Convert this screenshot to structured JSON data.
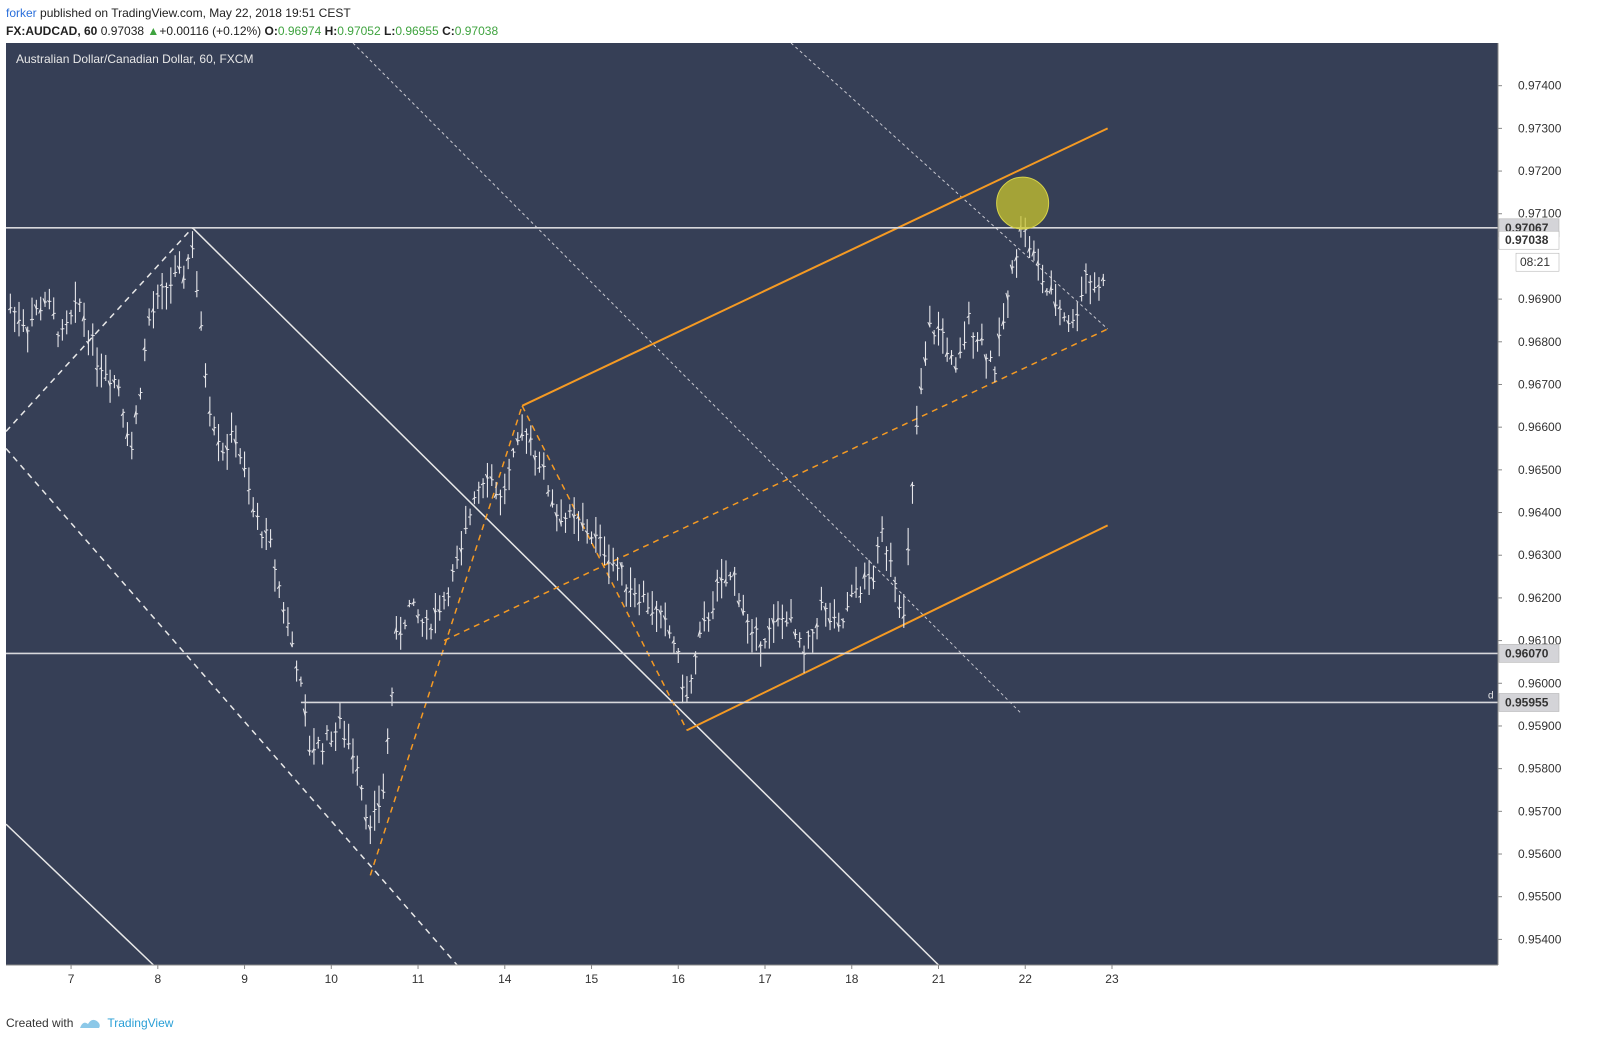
{
  "header": {
    "user": "forker",
    "published": " published on TradingView.com, May 22, 2018 19:51 CEST",
    "symbol": "FX:AUDCAD, 60",
    "last": "0.97038",
    "change": "+0.00116 (+0.12%)",
    "o_label": "O:",
    "o": "0.96974",
    "h_label": "H:",
    "h": "0.97052",
    "l_label": "L:",
    "l": "0.96955",
    "c_label": "C:",
    "c": "0.97038"
  },
  "footer": {
    "created_with": "Created with",
    "brand": "TradingView"
  },
  "colors": {
    "background": "#363f56",
    "orange": "#f59a23",
    "white": "#e8e8e8",
    "highlight": "#c9c52e"
  },
  "chart_data": {
    "type": "line",
    "title": "Australian Dollar/Canadian Dollar, 60, FXCM",
    "xlabel": "",
    "ylabel": "",
    "x_tick_labels": [
      "7",
      "8",
      "9",
      "10",
      "11",
      "14",
      "15",
      "16",
      "17",
      "18",
      "21",
      "22",
      "23"
    ],
    "y_tick_labels": [
      "0.97400",
      "0.97300",
      "0.97200",
      "0.97100",
      "0.96900",
      "0.96800",
      "0.96700",
      "0.96600",
      "0.96500",
      "0.96400",
      "0.96300",
      "0.96200",
      "0.96100",
      "0.96000",
      "0.95900",
      "0.95800",
      "0.95700",
      "0.95600",
      "0.95500",
      "0.95400"
    ],
    "ylim": [
      0.9534,
      0.975
    ],
    "xlim": [
      6.25,
      23.45
    ],
    "price_labels": [
      {
        "value": 0.97067,
        "text": "0.97067"
      },
      {
        "value": 0.97038,
        "text": "0.97038"
      },
      {
        "value": 0.9607,
        "text": "0.96070"
      },
      {
        "value": 0.95955,
        "text": "0.95955"
      }
    ],
    "countdown": "08:21",
    "d_marker": "d",
    "horizontal_levels": [
      0.97067,
      0.9607,
      0.95955
    ],
    "series": [
      {
        "type": "hourly-bars",
        "anchors": [
          [
            6.3,
            0.9688
          ],
          [
            6.5,
            0.9684
          ],
          [
            6.7,
            0.969
          ],
          [
            6.9,
            0.9681
          ],
          [
            7.1,
            0.9689
          ],
          [
            7.3,
            0.9676
          ],
          [
            7.55,
            0.967
          ],
          [
            7.7,
            0.9655
          ],
          [
            7.9,
            0.9685
          ],
          [
            8.1,
            0.9693
          ],
          [
            8.3,
            0.9696
          ],
          [
            8.4,
            0.9703
          ],
          [
            8.5,
            0.9682
          ],
          [
            8.6,
            0.9665
          ],
          [
            8.75,
            0.9655
          ],
          [
            8.9,
            0.9658
          ],
          [
            9.1,
            0.964
          ],
          [
            9.3,
            0.9632
          ],
          [
            9.45,
            0.9618
          ],
          [
            9.6,
            0.9605
          ],
          [
            9.75,
            0.9585
          ],
          [
            9.9,
            0.9586
          ],
          [
            10.1,
            0.959
          ],
          [
            10.3,
            0.9582
          ],
          [
            10.45,
            0.9565
          ],
          [
            10.6,
            0.9575
          ],
          [
            10.75,
            0.961
          ],
          [
            10.9,
            0.9618
          ],
          [
            11.1,
            0.9613
          ],
          [
            11.3,
            0.962
          ],
          [
            11.5,
            0.963
          ],
          [
            11.65,
            0.9645
          ],
          [
            11.8,
            0.965
          ],
          [
            11.95,
            0.9643
          ],
          [
            12.1,
            0.9652
          ],
          [
            12.25,
            0.966
          ],
          [
            12.4,
            0.9652
          ],
          [
            12.6,
            0.964
          ],
          [
            12.8,
            0.9638
          ],
          [
            13.0,
            0.9635
          ],
          [
            13.2,
            0.963
          ],
          [
            13.4,
            0.9624
          ],
          [
            13.6,
            0.962
          ],
          [
            13.8,
            0.9615
          ],
          [
            13.95,
            0.961
          ],
          [
            14.1,
            0.9596
          ],
          [
            14.25,
            0.961
          ],
          [
            14.45,
            0.9622
          ],
          [
            14.65,
            0.9625
          ],
          [
            14.85,
            0.961
          ],
          [
            15.05,
            0.9612
          ],
          [
            15.25,
            0.9616
          ],
          [
            15.45,
            0.9606
          ],
          [
            15.65,
            0.9618
          ],
          [
            15.85,
            0.9612
          ],
          [
            16.05,
            0.9622
          ],
          [
            16.25,
            0.9625
          ],
          [
            16.35,
            0.9635
          ],
          [
            16.45,
            0.963
          ],
          [
            16.6,
            0.9615
          ],
          [
            16.75,
            0.966
          ],
          [
            16.9,
            0.9683
          ],
          [
            17.05,
            0.9682
          ],
          [
            17.2,
            0.9672
          ],
          [
            17.35,
            0.9685
          ],
          [
            17.5,
            0.968
          ],
          [
            17.65,
            0.9674
          ],
          [
            17.8,
            0.969
          ],
          [
            17.95,
            0.9708
          ],
          [
            18.1,
            0.97
          ],
          [
            18.25,
            0.9692
          ],
          [
            18.4,
            0.9688
          ],
          [
            18.55,
            0.9684
          ],
          [
            18.7,
            0.9696
          ],
          [
            18.85,
            0.9692
          ],
          [
            18.95,
            0.97
          ]
        ]
      }
    ],
    "drawings": {
      "highlight_circle_value": {
        "x": 17.97,
        "y": 0.97125
      }
    }
  }
}
